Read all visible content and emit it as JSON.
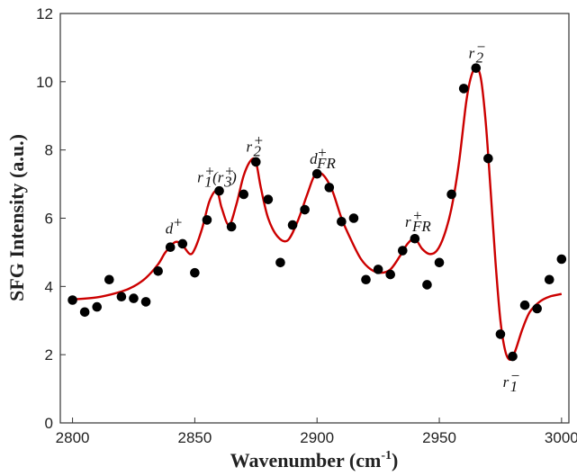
{
  "chart_data": {
    "type": "scatter",
    "xlabel": "Wavenumber (cm",
    "xlabel_sup": "-1",
    "xlabel_close": ")",
    "ylabel": "SFG Intensity (a.u.)",
    "xlim": [
      2795,
      3003
    ],
    "ylim": [
      0,
      12
    ],
    "xticks": [
      2800,
      2850,
      2900,
      2950,
      3000
    ],
    "yticks": [
      0,
      2,
      4,
      6,
      8,
      10,
      12
    ],
    "grid": false,
    "colors": {
      "points": "#000000",
      "fit": "#cc0000",
      "axis": "#333333"
    },
    "series": [
      {
        "kind": "points",
        "x": [
          2800,
          2805,
          2810,
          2815,
          2820,
          2825,
          2830,
          2835,
          2840,
          2845,
          2850,
          2855,
          2860,
          2865,
          2870,
          2875,
          2880,
          2885,
          2890,
          2895,
          2900,
          2905,
          2910,
          2915,
          2920,
          2925,
          2930,
          2935,
          2940,
          2945,
          2950,
          2955,
          2960,
          2965,
          2970,
          2975,
          2980,
          2985,
          2990,
          2995,
          3000
        ],
        "y": [
          3.6,
          3.25,
          3.4,
          4.2,
          3.7,
          3.65,
          3.55,
          4.45,
          5.15,
          5.25,
          4.4,
          5.95,
          6.8,
          5.75,
          6.7,
          7.65,
          6.55,
          4.7,
          5.8,
          6.25,
          7.3,
          6.9,
          5.9,
          6.0,
          4.2,
          4.5,
          4.35,
          5.05,
          5.4,
          4.05,
          4.7,
          6.7,
          9.8,
          10.4,
          7.75,
          2.6,
          1.95,
          3.45,
          3.35,
          4.2,
          4.8
        ]
      },
      {
        "kind": "fit",
        "x": [
          2800,
          2810,
          2820,
          2825,
          2830,
          2835,
          2838,
          2842,
          2845,
          2848,
          2850,
          2853,
          2856,
          2859,
          2861,
          2864,
          2867,
          2870,
          2873,
          2875,
          2877,
          2880,
          2884,
          2888,
          2892,
          2896,
          2899,
          2902,
          2906,
          2910,
          2914,
          2918,
          2922,
          2926,
          2930,
          2934,
          2937,
          2940,
          2943,
          2946,
          2949,
          2952,
          2955,
          2958,
          2961,
          2963,
          2965,
          2967,
          2969,
          2971,
          2973,
          2975,
          2977,
          2979,
          2981,
          2984,
          2987,
          2991,
          2995,
          3000
        ],
        "y": [
          3.62,
          3.68,
          3.85,
          4.0,
          4.25,
          4.65,
          5.0,
          5.3,
          5.2,
          4.95,
          5.1,
          5.7,
          6.5,
          6.8,
          6.3,
          5.8,
          6.4,
          7.25,
          7.7,
          7.65,
          6.9,
          6.0,
          5.45,
          5.35,
          5.9,
          6.7,
          7.25,
          7.3,
          6.85,
          6.0,
          5.35,
          4.8,
          4.5,
          4.4,
          4.5,
          4.9,
          5.25,
          5.4,
          5.1,
          4.95,
          5.05,
          5.5,
          6.3,
          7.6,
          9.4,
          10.15,
          10.4,
          10.1,
          8.8,
          6.8,
          4.7,
          3.0,
          2.1,
          1.85,
          2.1,
          2.75,
          3.25,
          3.55,
          3.7,
          3.78
        ]
      }
    ],
    "annotations": [
      {
        "base": "d",
        "sup": "+",
        "sub": "",
        "tail": "",
        "x": 2838,
        "y": 5.55
      },
      {
        "base": "r",
        "sup": "+",
        "sub": "1",
        "tail": "(r",
        "tail_sup": "+",
        "tail_sub": "3",
        "tail_end": ")",
        "x": 2851,
        "y": 7.05
      },
      {
        "base": "r",
        "sup": "+",
        "sub": "2",
        "tail": "",
        "x": 2871,
        "y": 7.95
      },
      {
        "base": "d",
        "sup": "+",
        "sub": "FR",
        "tail": "",
        "x": 2897,
        "y": 7.6
      },
      {
        "base": "r",
        "sup": "+",
        "sub": "FR",
        "tail": "",
        "x": 2936,
        "y": 5.75
      },
      {
        "base": "r",
        "sup": "−",
        "sub": "2",
        "tail": "",
        "x": 2962,
        "y": 10.7
      },
      {
        "base": "r",
        "sup": "−",
        "sub": "1",
        "tail": "",
        "x": 2976,
        "y": 1.05
      }
    ]
  }
}
